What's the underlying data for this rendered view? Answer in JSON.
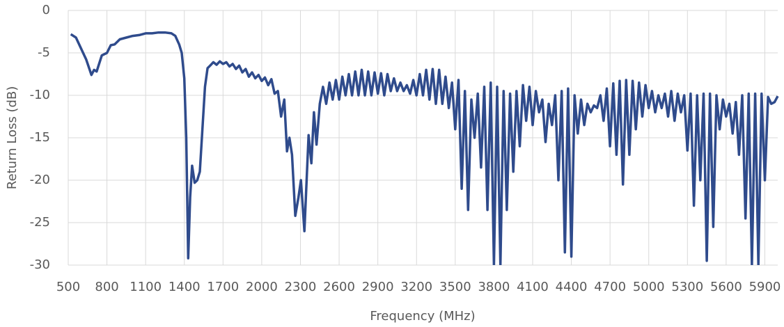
{
  "chart_data": {
    "type": "line",
    "x_label": "Frequency (MHz)",
    "y_label": "Return Loss (dB)",
    "xlim": [
      500,
      6000
    ],
    "ylim": [
      -30,
      0
    ],
    "xticks": [
      500,
      800,
      1100,
      1400,
      1700,
      2000,
      2300,
      2600,
      2900,
      3200,
      3500,
      3800,
      4100,
      4400,
      4700,
      5000,
      5300,
      5600,
      5900
    ],
    "yticks": [
      0,
      -5,
      -10,
      -15,
      -20,
      -25,
      -30
    ],
    "grid": true,
    "x": [
      520,
      560,
      600,
      640,
      680,
      700,
      720,
      760,
      800,
      830,
      860,
      900,
      950,
      1000,
      1050,
      1100,
      1150,
      1200,
      1250,
      1300,
      1330,
      1360,
      1380,
      1400,
      1415,
      1430,
      1445,
      1460,
      1480,
      1500,
      1520,
      1540,
      1560,
      1580,
      1600,
      1625,
      1650,
      1675,
      1700,
      1725,
      1750,
      1775,
      1800,
      1825,
      1850,
      1875,
      1900,
      1925,
      1950,
      1975,
      2000,
      2025,
      2050,
      2075,
      2100,
      2125,
      2150,
      2175,
      2196,
      2215,
      2235,
      2260,
      2285,
      2304,
      2331,
      2363,
      2385,
      2405,
      2425,
      2450,
      2475,
      2500,
      2525,
      2550,
      2575,
      2600,
      2625,
      2650,
      2675,
      2700,
      2725,
      2750,
      2775,
      2800,
      2825,
      2850,
      2875,
      2900,
      2925,
      2950,
      2975,
      3000,
      3025,
      3050,
      3075,
      3100,
      3125,
      3150,
      3175,
      3200,
      3225,
      3250,
      3275,
      3300,
      3325,
      3350,
      3375,
      3400,
      3425,
      3450,
      3475,
      3500,
      3525,
      3550,
      3575,
      3600,
      3625,
      3650,
      3675,
      3700,
      3725,
      3750,
      3775,
      3800,
      3825,
      3850,
      3875,
      3900,
      3925,
      3950,
      3975,
      4000,
      4025,
      4050,
      4075,
      4100,
      4125,
      4150,
      4175,
      4200,
      4225,
      4250,
      4275,
      4300,
      4325,
      4350,
      4375,
      4400,
      4425,
      4450,
      4475,
      4500,
      4525,
      4550,
      4575,
      4600,
      4625,
      4650,
      4675,
      4700,
      4725,
      4750,
      4775,
      4800,
      4825,
      4850,
      4875,
      4900,
      4925,
      4950,
      4975,
      5000,
      5025,
      5050,
      5075,
      5100,
      5125,
      5150,
      5175,
      5200,
      5225,
      5250,
      5275,
      5300,
      5325,
      5350,
      5375,
      5400,
      5425,
      5450,
      5475,
      5500,
      5525,
      5550,
      5575,
      5600,
      5625,
      5650,
      5675,
      5700,
      5725,
      5750,
      5775,
      5800,
      5825,
      5850,
      5875,
      5900,
      5925,
      5950,
      5975,
      6000
    ],
    "series": [
      {
        "color": "#2f4b8c",
        "values": [
          -2.8,
          -3.2,
          -4.5,
          -5.8,
          -7.6,
          -7,
          -7.2,
          -5.3,
          -5,
          -4.1,
          -4,
          -3.4,
          -3.2,
          -3,
          -2.9,
          -2.7,
          -2.7,
          -2.6,
          -2.6,
          -2.7,
          -3,
          -4,
          -5,
          -8,
          -15,
          -29.2,
          -22,
          -18.3,
          -20.3,
          -20,
          -19,
          -14,
          -9,
          -6.8,
          -6.5,
          -6.1,
          -6.4,
          -6,
          -6.3,
          -6.1,
          -6.6,
          -6.3,
          -6.9,
          -6.5,
          -7.3,
          -6.9,
          -7.8,
          -7.3,
          -8,
          -7.6,
          -8.3,
          -7.9,
          -8.8,
          -8.1,
          -9.8,
          -9.5,
          -12.5,
          -10.5,
          -16.6,
          -15,
          -17,
          -24.2,
          -22,
          -20,
          -26,
          -14.7,
          -18,
          -12,
          -15.8,
          -11,
          -9,
          -11,
          -8.5,
          -10.5,
          -8.2,
          -10.5,
          -7.8,
          -10,
          -7.5,
          -10,
          -7.2,
          -10,
          -7,
          -10,
          -7.2,
          -10,
          -7.3,
          -9.8,
          -7.4,
          -10,
          -7.5,
          -9.5,
          -8,
          -9.5,
          -8.5,
          -9.5,
          -8.8,
          -9.8,
          -8.2,
          -10,
          -7.5,
          -10,
          -7,
          -10.5,
          -6.9,
          -11,
          -7,
          -11,
          -7.8,
          -11.5,
          -8.5,
          -14,
          -8.2,
          -21,
          -9.5,
          -23.5,
          -10.5,
          -15,
          -9.8,
          -18.5,
          -9,
          -23.5,
          -8.5,
          -30,
          -9,
          -30,
          -9.5,
          -23.5,
          -9.8,
          -19,
          -9.5,
          -16,
          -8.8,
          -13,
          -9,
          -13.5,
          -9.5,
          -12,
          -10.5,
          -15.5,
          -11,
          -13.5,
          -10,
          -20,
          -9.5,
          -28.5,
          -9.2,
          -29,
          -10,
          -14.5,
          -10.5,
          -13.5,
          -11,
          -12,
          -11.2,
          -11.5,
          -10,
          -13,
          -9.2,
          -16,
          -8.6,
          -17,
          -8.3,
          -20.5,
          -8.2,
          -17,
          -8.3,
          -14,
          -8.5,
          -12.5,
          -8.8,
          -11.5,
          -9.5,
          -12,
          -10,
          -11.5,
          -9.8,
          -12.5,
          -9.5,
          -13,
          -9.8,
          -12,
          -10,
          -16.5,
          -9.8,
          -23,
          -10,
          -20,
          -9.8,
          -29.5,
          -9.8,
          -25.5,
          -10,
          -14,
          -10.5,
          -12.5,
          -11,
          -14.5,
          -10.8,
          -17,
          -10,
          -24.5,
          -9.8,
          -30,
          -9.8,
          -30,
          -9.8,
          -20,
          -10.2,
          -11,
          -10.8,
          -10.1
        ]
      }
    ]
  }
}
